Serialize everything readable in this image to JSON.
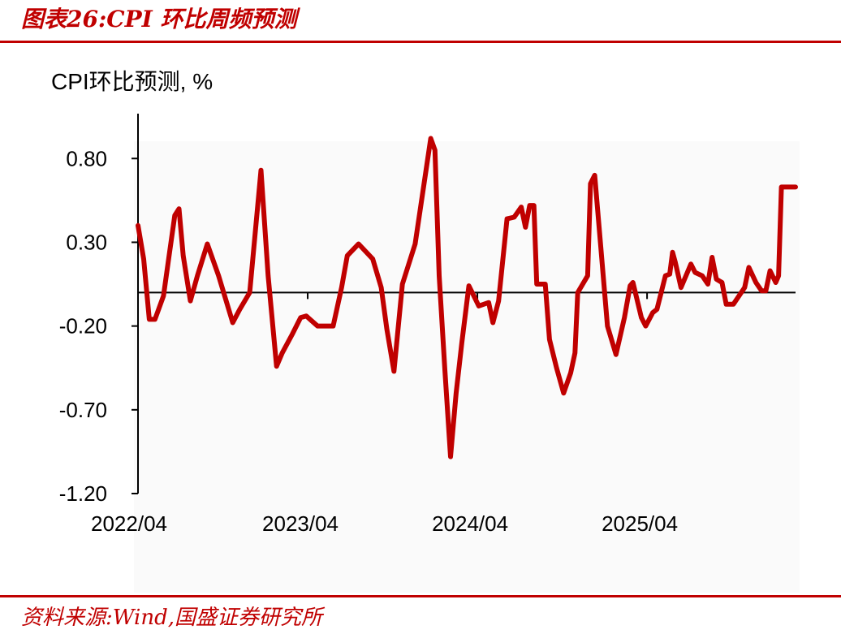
{
  "figure": {
    "title": "图表26:CPI 环比周频预测",
    "source": "资料来源:Wind,国盛证券研究所",
    "accent_color": "#c00000"
  },
  "chart_data": {
    "type": "line",
    "title": "CPI环比预测, %",
    "xlabel": "",
    "ylabel": "",
    "ylim": [
      -1.2,
      1.0
    ],
    "yticks": [
      0.8,
      0.3,
      -0.2,
      -0.7,
      -1.2
    ],
    "ytick_labels": [
      "0.80",
      "0.30",
      "-0.20",
      "-0.70",
      "-1.20"
    ],
    "xtick_labels": [
      "2022/04",
      "2023/04",
      "2024/04",
      "2025/04"
    ],
    "xtick_positions": [
      0,
      12,
      24,
      36
    ],
    "xlim": [
      0,
      46.5
    ],
    "grid": false,
    "series": [
      {
        "color": "#c00000",
        "points": [
          [
            0.0,
            0.4
          ],
          [
            0.4,
            0.2
          ],
          [
            0.8,
            -0.16
          ],
          [
            1.2,
            -0.16
          ],
          [
            1.8,
            -0.02
          ],
          [
            2.2,
            0.22
          ],
          [
            2.6,
            0.46
          ],
          [
            2.9,
            0.5
          ],
          [
            3.2,
            0.22
          ],
          [
            3.7,
            -0.05
          ],
          [
            4.2,
            0.1
          ],
          [
            4.9,
            0.29
          ],
          [
            5.7,
            0.1
          ],
          [
            6.7,
            -0.18
          ],
          [
            7.2,
            -0.1
          ],
          [
            7.9,
            0.0
          ],
          [
            8.7,
            0.73
          ],
          [
            9.2,
            0.1
          ],
          [
            9.8,
            -0.44
          ],
          [
            10.2,
            -0.36
          ],
          [
            10.9,
            -0.25
          ],
          [
            11.5,
            -0.15
          ],
          [
            11.9,
            -0.14
          ],
          [
            12.7,
            -0.2
          ],
          [
            13.3,
            -0.2
          ],
          [
            13.8,
            -0.2
          ],
          [
            14.4,
            0.03
          ],
          [
            14.8,
            0.22
          ],
          [
            15.6,
            0.29
          ],
          [
            16.6,
            0.2
          ],
          [
            17.2,
            0.03
          ],
          [
            17.6,
            -0.22
          ],
          [
            18.1,
            -0.47
          ],
          [
            18.7,
            0.05
          ],
          [
            19.6,
            0.29
          ],
          [
            20.3,
            0.69
          ],
          [
            20.7,
            0.92
          ],
          [
            21.0,
            0.85
          ],
          [
            21.3,
            0.1
          ],
          [
            21.7,
            -0.46
          ],
          [
            22.1,
            -0.98
          ],
          [
            22.5,
            -0.6
          ],
          [
            22.9,
            -0.3
          ],
          [
            23.4,
            0.04
          ],
          [
            24.1,
            -0.08
          ],
          [
            24.8,
            -0.06
          ],
          [
            25.1,
            -0.18
          ],
          [
            25.5,
            -0.05
          ],
          [
            26.1,
            0.44
          ],
          [
            26.6,
            0.45
          ],
          [
            27.1,
            0.51
          ],
          [
            27.4,
            0.39
          ],
          [
            27.7,
            0.52
          ],
          [
            28.0,
            0.52
          ],
          [
            28.2,
            0.05
          ],
          [
            28.8,
            0.05
          ],
          [
            29.1,
            -0.28
          ],
          [
            29.6,
            -0.45
          ],
          [
            30.1,
            -0.6
          ],
          [
            30.6,
            -0.48
          ],
          [
            30.9,
            -0.36
          ],
          [
            31.1,
            0.0
          ],
          [
            31.8,
            0.1
          ],
          [
            32.0,
            0.65
          ],
          [
            32.3,
            0.7
          ],
          [
            32.7,
            0.3
          ],
          [
            33.2,
            -0.2
          ],
          [
            33.8,
            -0.37
          ],
          [
            34.4,
            -0.15
          ],
          [
            34.8,
            0.04
          ],
          [
            35.0,
            0.06
          ],
          [
            35.6,
            -0.15
          ],
          [
            35.9,
            -0.2
          ],
          [
            36.4,
            -0.12
          ],
          [
            36.7,
            -0.1
          ],
          [
            37.3,
            0.1
          ],
          [
            37.6,
            0.11
          ],
          [
            37.8,
            0.24
          ],
          [
            38.0,
            0.18
          ],
          [
            38.4,
            0.03
          ],
          [
            39.1,
            0.17
          ],
          [
            39.4,
            0.12
          ],
          [
            39.9,
            0.1
          ],
          [
            40.3,
            0.05
          ],
          [
            40.6,
            0.21
          ],
          [
            40.9,
            0.08
          ],
          [
            41.3,
            0.06
          ],
          [
            41.6,
            -0.07
          ],
          [
            42.1,
            -0.07
          ],
          [
            42.9,
            0.03
          ],
          [
            43.2,
            0.15
          ],
          [
            43.7,
            0.06
          ],
          [
            44.1,
            0.01
          ],
          [
            44.4,
            0.01
          ],
          [
            44.7,
            0.13
          ],
          [
            45.1,
            0.06
          ],
          [
            45.3,
            0.1
          ],
          [
            45.5,
            0.63
          ],
          [
            46.5,
            0.63
          ]
        ]
      }
    ]
  }
}
